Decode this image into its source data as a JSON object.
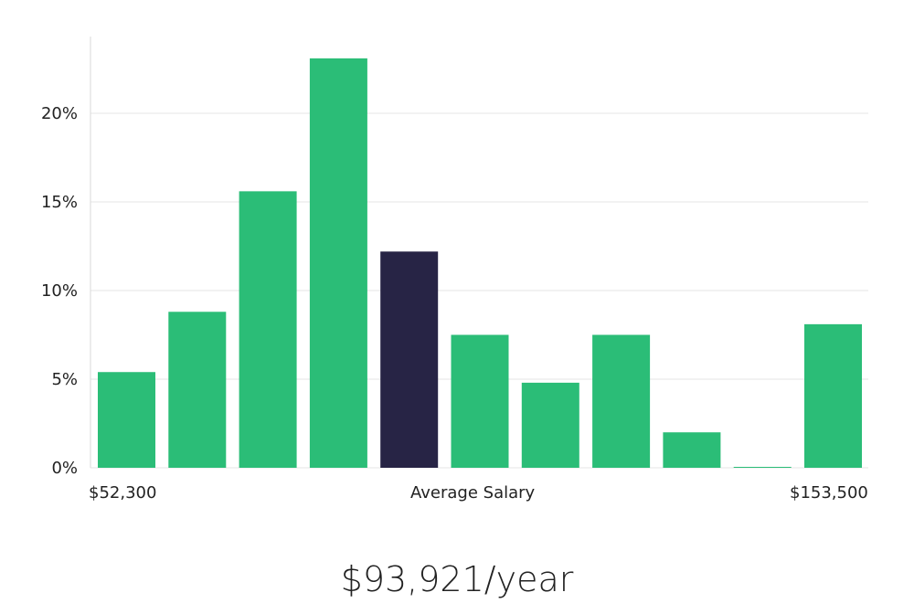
{
  "chart_data": {
    "type": "bar",
    "values": [
      5.4,
      8.8,
      15.6,
      23.1,
      12.2,
      7.5,
      4.8,
      7.5,
      2.0,
      0.05,
      8.1
    ],
    "highlight_index": 4,
    "ylim": [
      0,
      24
    ],
    "y_ticks": [
      0,
      5,
      10,
      15,
      20
    ],
    "y_tick_labels": [
      "0%",
      "5%",
      "10%",
      "15%",
      "20%"
    ],
    "x_min_label": "$52,300",
    "x_center_label": "Average Salary",
    "x_max_label": "$153,500",
    "grid": true,
    "bar_color": "#2bbd77",
    "highlight_color": "#272445"
  },
  "summary": {
    "average_salary": "$93,921/year"
  }
}
